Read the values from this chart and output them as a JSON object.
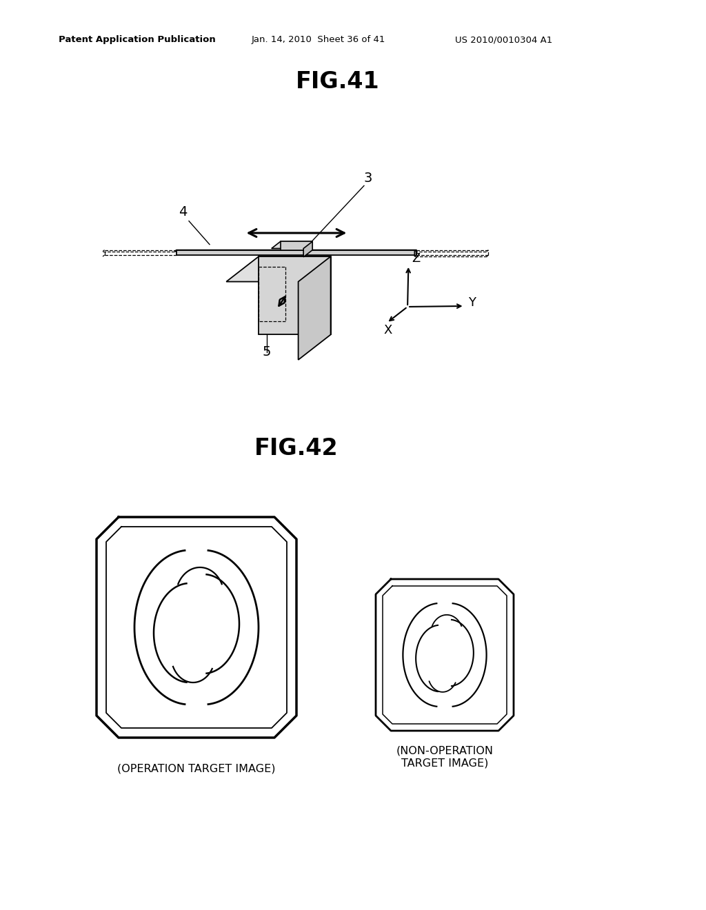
{
  "bg_color": "#ffffff",
  "header_left": "Patent Application Publication",
  "header_mid": "Jan. 14, 2010  Sheet 36 of 41",
  "header_right": "US 2010/0010304 A1",
  "fig41_title": "FIG.41",
  "fig42_title": "FIG.42",
  "label_4": "4",
  "label_3": "3",
  "label_5": "5",
  "op_label": "(OPERATION TARGET IMAGE)",
  "non_op_label": "(NON-OPERATION\nTARGET IMAGE)",
  "line_color": "#000000",
  "text_color": "#000000"
}
